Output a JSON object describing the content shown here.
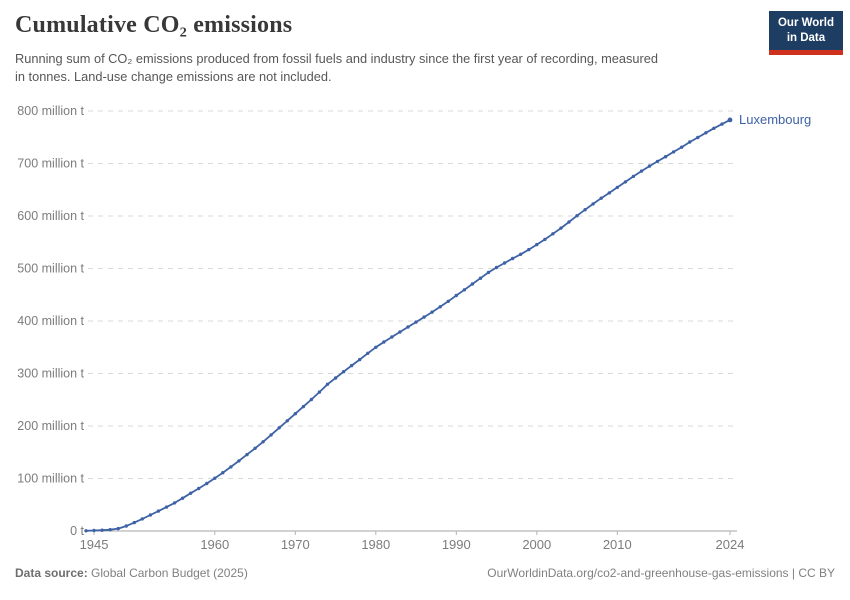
{
  "header": {
    "title": "Cumulative CO₂ emissions",
    "subtitle": "Running sum of CO₂ emissions produced from fossil fuels and industry since the first year of recording, measured in tonnes. Land-use change emissions are not included.",
    "logo": {
      "line1": "Our World",
      "line2": "in Data"
    }
  },
  "colors": {
    "line": "#3E62A6",
    "end_label": "#3E62A6",
    "logo_bg": "#1D3D63",
    "logo_accent": "#D0311F",
    "gridline": "#DADADA",
    "axis_line": "#A6A6A6",
    "tick": "#B3B3B3",
    "axis_label": "#7C7C7C"
  },
  "chart_data": {
    "type": "line",
    "title": "Cumulative CO₂ emissions",
    "xlabel": "",
    "ylabel": "",
    "xlim": [
      1944,
      2024
    ],
    "ylim": [
      0,
      800
    ],
    "grid": "horizontal-dashed",
    "legend_position": "end-of-line",
    "end_label": "Luxembourg",
    "x_ticks": [
      1945,
      1960,
      1970,
      1980,
      1990,
      2000,
      2010,
      2024
    ],
    "y_ticks": [
      {
        "value": 0,
        "label": "0 t"
      },
      {
        "value": 100,
        "label": "100 million t"
      },
      {
        "value": 200,
        "label": "200 million t"
      },
      {
        "value": 300,
        "label": "300 million t"
      },
      {
        "value": 400,
        "label": "400 million t"
      },
      {
        "value": 500,
        "label": "500 million t"
      },
      {
        "value": 600,
        "label": "600 million t"
      },
      {
        "value": 700,
        "label": "700 million t"
      },
      {
        "value": 800,
        "label": "800 million t"
      }
    ],
    "series": [
      {
        "name": "Luxembourg",
        "unit": "million t",
        "x": [
          1944,
          1945,
          1946,
          1947,
          1948,
          1949,
          1950,
          1951,
          1952,
          1953,
          1954,
          1955,
          1956,
          1957,
          1958,
          1959,
          1960,
          1961,
          1962,
          1963,
          1964,
          1965,
          1966,
          1967,
          1968,
          1969,
          1970,
          1971,
          1972,
          1973,
          1974,
          1975,
          1976,
          1977,
          1978,
          1979,
          1980,
          1981,
          1982,
          1983,
          1984,
          1985,
          1986,
          1987,
          1988,
          1989,
          1990,
          1991,
          1992,
          1993,
          1994,
          1995,
          1996,
          1997,
          1998,
          1999,
          2000,
          2001,
          2002,
          2003,
          2004,
          2005,
          2006,
          2007,
          2008,
          2009,
          2010,
          2011,
          2012,
          2013,
          2014,
          2015,
          2016,
          2017,
          2018,
          2019,
          2020,
          2021,
          2022,
          2023,
          2024
        ],
        "values": [
          0.4,
          0.9,
          1.5,
          2.5,
          4.5,
          9.5,
          16,
          23,
          30.5,
          38,
          45.5,
          53.5,
          62.5,
          72,
          81,
          90.5,
          100.5,
          111,
          122,
          133.5,
          145.5,
          157.5,
          170,
          183,
          196.5,
          210,
          223.5,
          237,
          250.5,
          264.5,
          279.5,
          291.5,
          303.5,
          315,
          326.5,
          338.5,
          350,
          360,
          369.5,
          379,
          388.5,
          398,
          407.5,
          417,
          427,
          437.5,
          448.5,
          459.5,
          470.5,
          481.5,
          492.5,
          502,
          510.5,
          519,
          527,
          536,
          545.5,
          555.5,
          566,
          577,
          588.5,
          600.5,
          612,
          623,
          634,
          644,
          654.5,
          665,
          675.5,
          685.5,
          695,
          704,
          713,
          722,
          731,
          741,
          749.5,
          758.5,
          767,
          775,
          783
        ]
      }
    ]
  },
  "footer": {
    "source_label": "Data source:",
    "source": "Global Carbon Budget (2025)",
    "link": "OurWorldinData.org/co2-and-greenhouse-gas-emissions | CC BY"
  }
}
